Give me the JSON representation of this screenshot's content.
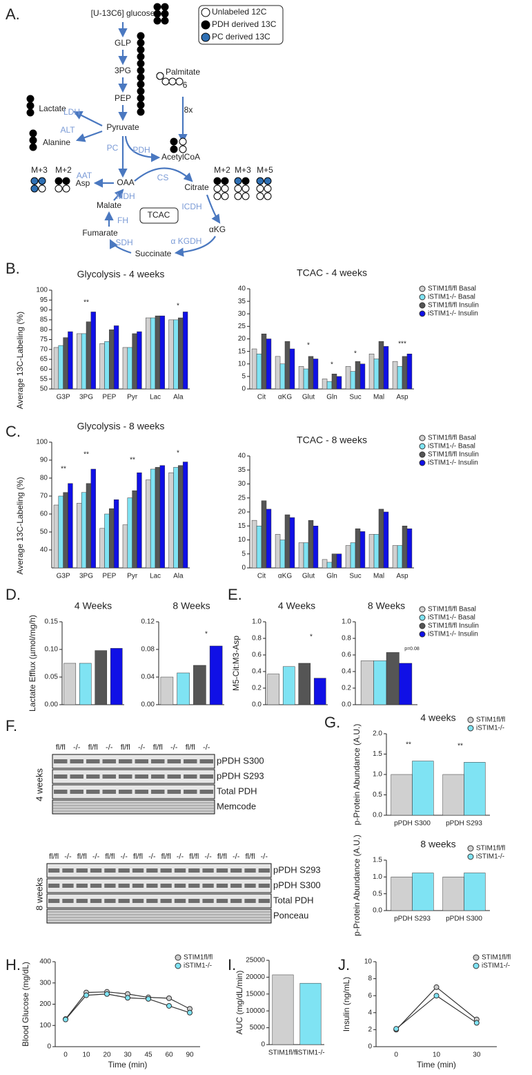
{
  "panel_labels": [
    "A.",
    "B.",
    "C.",
    "D.",
    "E.",
    "F.",
    "G.",
    "H.",
    "I.",
    "J."
  ],
  "diagram": {
    "labels": [
      "[U-13C6] glucose",
      "GLP",
      "3PG",
      "PEP",
      "Pyruvate",
      "Lactate",
      "Alanine",
      "LDH",
      "ALT",
      "PC",
      "PDH",
      "AcetylCoA",
      "Palmitate",
      "6",
      "8x",
      "M+3",
      "M+2",
      "AAT",
      "Asp",
      "OAA",
      "CS",
      "Citrate",
      "MDH",
      "Malate",
      "TCAC",
      "ICDH",
      "FH",
      "Fumarate",
      "SDH",
      "α KGDH",
      "αKG",
      "Succinate",
      "M+2",
      "M+3",
      "M+5"
    ],
    "legend": [
      "Unlabeled 12C",
      "PDH derived 13C",
      "PC derived 13C"
    ]
  },
  "blots": {
    "four_weeks": {
      "label": "4 weeks",
      "lanes": [
        "fl/fl",
        "-/-",
        "fl/fl",
        "-/-",
        "fl/fl",
        "-/-",
        "fl/fl",
        "-/-",
        "fl/fl",
        "-/-"
      ],
      "rows": [
        "pPDH S300",
        "pPDH S293",
        "Total PDH",
        "Memcode"
      ]
    },
    "eight_weeks": {
      "label": "8 weeks",
      "lanes": [
        "fl/fl",
        "-/-",
        "fl/fl",
        "-/-",
        "fl/fl",
        "-/-",
        "fl/fl",
        "-/-",
        "fl/fl",
        "-/-",
        "fl/fl",
        "-/-",
        "fl/fl",
        "-/-",
        "fl/fl",
        "-/-"
      ],
      "rows": [
        "pPDH S293",
        "pPDH S300",
        "Total PDH",
        "Ponceau"
      ]
    }
  },
  "chart_data": [
    {
      "type": "bar",
      "title": "Glycolysis - 4 weeks",
      "ylabel": "Average 13C-Labeling (%)",
      "categories": [
        "G3P",
        "3PG",
        "PEP",
        "Pyr",
        "Lac",
        "Ala"
      ],
      "series": [
        {
          "color": "#d0d0d0",
          "values": [
            71,
            78,
            73,
            71,
            86,
            85
          ]
        },
        {
          "color": "#7fe3f3",
          "values": [
            72,
            78,
            74,
            71,
            86,
            85
          ]
        },
        {
          "color": "#555555",
          "values": [
            76,
            84,
            80,
            78,
            87,
            86
          ]
        },
        {
          "color": "#1010e6",
          "values": [
            79,
            89,
            82,
            79,
            87,
            89
          ]
        }
      ],
      "ylim": [
        50,
        100
      ],
      "yticks": [
        50,
        55,
        60,
        65,
        70,
        75,
        80,
        85,
        90,
        95,
        100
      ],
      "annotations": [
        "**",
        "*"
      ]
    },
    {
      "type": "bar",
      "title": "TCAC - 4 weeks",
      "categories": [
        "Cit",
        "αKG",
        "Glut",
        "Gln",
        "Suc",
        "Mal",
        "Asp"
      ],
      "series": [
        {
          "name": "STIM1fl/fl Basal",
          "color": "#d0d0d0",
          "values": [
            16,
            13,
            9,
            4,
            9,
            14,
            11
          ]
        },
        {
          "name": "iSTIM1-/- Basal",
          "color": "#7fe3f3",
          "values": [
            14,
            10,
            8,
            3,
            7,
            12,
            9
          ]
        },
        {
          "name": "STIM1fl/fl Insulin",
          "color": "#555555",
          "values": [
            22,
            19,
            13,
            6,
            11,
            19,
            13
          ]
        },
        {
          "name": "iSTIM1-/- Insulin",
          "color": "#1010e6",
          "values": [
            20,
            16,
            12,
            5,
            10,
            17,
            14
          ]
        }
      ],
      "ylim": [
        0,
        40
      ],
      "yticks": [
        0,
        5,
        10,
        15,
        20,
        25,
        30,
        35,
        40
      ],
      "legend": "right",
      "annotations": [
        "*",
        "*",
        "*",
        "***"
      ]
    },
    {
      "type": "bar",
      "title": "Glycolysis - 8 weeks",
      "ylabel": "Average 13C-Labeling (%)",
      "categories": [
        "G3P",
        "3PG",
        "PEP",
        "Pyr",
        "Lac",
        "Ala"
      ],
      "series": [
        {
          "color": "#d0d0d0",
          "values": [
            65,
            66,
            52,
            54,
            79,
            83
          ]
        },
        {
          "color": "#7fe3f3",
          "values": [
            70,
            72,
            60,
            69,
            85,
            86
          ]
        },
        {
          "color": "#555555",
          "values": [
            72,
            77,
            63,
            73,
            86,
            87
          ]
        },
        {
          "color": "#1010e6",
          "values": [
            77,
            85,
            68,
            83,
            87,
            89
          ]
        }
      ],
      "ylim": [
        30,
        100
      ],
      "yticks": [
        40,
        50,
        60,
        70,
        80,
        90,
        100
      ],
      "annotations": [
        "**",
        "**",
        "**",
        "*"
      ]
    },
    {
      "type": "bar",
      "title": "TCAC - 8 weeks",
      "categories": [
        "Cit",
        "αKG",
        "Glut",
        "Gln",
        "Suc",
        "Mal",
        "Asp"
      ],
      "series": [
        {
          "name": "STIM1fl/fl Basal",
          "color": "#d0d0d0",
          "values": [
            17,
            12,
            9,
            3,
            8,
            12,
            8
          ]
        },
        {
          "name": "iSTIM1-/- Basal",
          "color": "#7fe3f3",
          "values": [
            15,
            10,
            9,
            2,
            9,
            12,
            8
          ]
        },
        {
          "name": "STIM1fl/fl Insulin",
          "color": "#555555",
          "values": [
            24,
            19,
            17,
            5,
            14,
            21,
            15
          ]
        },
        {
          "name": "iSTIM1-/- Insulin",
          "color": "#1010e6",
          "values": [
            21,
            18,
            15,
            5,
            13,
            20,
            14
          ]
        }
      ],
      "ylim": [
        0,
        40
      ],
      "yticks": [
        0,
        5,
        10,
        15,
        20,
        25,
        30,
        35,
        40
      ],
      "legend": "right"
    },
    {
      "type": "bar",
      "title": "4 Weeks",
      "ylabel": "Lactate Efflux (µmol/mg/h)",
      "values": [
        0.075,
        0.075,
        0.098,
        0.102
      ],
      "colors": [
        "#d0d0d0",
        "#7fe3f3",
        "#555555",
        "#1010e6"
      ],
      "ylim": [
        0,
        0.15
      ],
      "yticks": [
        {
          "value": 0,
          "label": "0.00"
        },
        0.05,
        {
          "value": 0.1,
          "label": "0.10"
        },
        0.15
      ]
    },
    {
      "type": "bar",
      "title": "8 Weeks",
      "values": [
        0.04,
        0.046,
        0.057,
        0.085
      ],
      "colors": [
        "#d0d0d0",
        "#7fe3f3",
        "#555555",
        "#1010e6"
      ],
      "ylim": [
        0,
        0.12
      ],
      "yticks": [
        {
          "value": 0,
          "label": "0.00"
        },
        0.04,
        0.08,
        0.12
      ],
      "annotations": [
        "*"
      ]
    },
    {
      "type": "bar",
      "title": "4 Weeks",
      "ylabel": "M5-Cit:M3-Asp",
      "values": [
        0.37,
        0.46,
        0.5,
        0.32
      ],
      "colors": [
        "#d0d0d0",
        "#7fe3f3",
        "#555555",
        "#1010e6"
      ],
      "ylim": [
        0,
        1
      ],
      "yticks": [
        {
          "value": 0,
          "label": "0.0"
        },
        0.2,
        0.4,
        0.6,
        0.8,
        {
          "value": 1,
          "label": "1.0"
        }
      ],
      "annotations": [
        "*"
      ]
    },
    {
      "type": "bar",
      "title": "8  Weeks",
      "categories": [
        null
      ],
      "series": [
        {
          "name": "STIM1fl/fl Basal",
          "color": "#d0d0d0",
          "values": [
            0.53
          ]
        },
        {
          "name": "iSTIM1-/- Basal",
          "color": "#7fe3f3",
          "values": [
            0.53
          ]
        },
        {
          "name": "STIM1fl/fl Insulin",
          "color": "#555555",
          "values": [
            0.63
          ]
        },
        {
          "name": "iSTIM1-/- Insulin",
          "color": "#1010e6",
          "values": [
            0.5
          ]
        }
      ],
      "ylim": [
        0,
        1
      ],
      "yticks": [
        {
          "value": 0,
          "label": "0.0"
        },
        0.2,
        0.4,
        0.6,
        0.8,
        {
          "value": 1,
          "label": "1.0"
        }
      ],
      "legend": "right",
      "annotations": [
        "p=0.08"
      ]
    },
    {
      "type": "bar",
      "title": "4 weeks",
      "ylabel": "p-Protein Abundance (A.U.)",
      "categories": [
        "pPDH S300",
        "pPDH S293"
      ],
      "series": [
        {
          "name": "STIM1fl/fl",
          "color": "#d0d0d0",
          "values": [
            1.0,
            1.0
          ]
        },
        {
          "name": "iSTIM1-/-",
          "color": "#7fe3f3",
          "values": [
            1.33,
            1.3
          ]
        }
      ],
      "ylim": [
        0,
        2
      ],
      "yticks": [
        {
          "value": 0,
          "label": "0.0"
        },
        0.5,
        {
          "value": 1,
          "label": "1.0"
        },
        1.5,
        {
          "value": 2,
          "label": "2.0"
        }
      ],
      "legend": "right",
      "annotations": [
        "**",
        "**"
      ]
    },
    {
      "type": "bar",
      "title": "8 weeks",
      "ylabel": "p-Protein Abundance (A.U.)",
      "categories": [
        "pPDH S293",
        "pPDH S300"
      ],
      "series": [
        {
          "name": "STIM1fl/fl",
          "color": "#d0d0d0",
          "values": [
            1.0,
            1.0
          ]
        },
        {
          "name": "iSTIM1-/-",
          "color": "#7fe3f3",
          "values": [
            1.12,
            1.12
          ]
        }
      ],
      "ylim": [
        0,
        1.5
      ],
      "yticks": [
        {
          "value": 0,
          "label": "0.0"
        },
        0.5,
        {
          "value": 1,
          "label": "1.0"
        },
        1.5
      ],
      "legend": "right"
    },
    {
      "type": "line",
      "xlabel": "Time (min)",
      "ylabel": "Blood Glucose (mg/dL)",
      "categories": [
        "0",
        "10",
        "20",
        "30",
        "45",
        "60",
        "90"
      ],
      "series": [
        {
          "name": "STIM1fl/fl",
          "color": "#cccccc",
          "values": [
            130,
            255,
            258,
            248,
            232,
            228,
            178
          ]
        },
        {
          "name": "iSTIM1-/-",
          "color": "#7fe3f3",
          "values": [
            128,
            242,
            248,
            230,
            225,
            192,
            160
          ]
        }
      ],
      "ylim": [
        0,
        400
      ],
      "yticks": [
        0,
        100,
        200,
        300,
        400
      ],
      "legend": "right"
    },
    {
      "type": "bar",
      "ylabel": "AUC (mg/dL/min)",
      "categories": [
        "STIM1fl/fl",
        "iSTIM1-/-"
      ],
      "values": [
        20700,
        18200
      ],
      "colors": [
        "#d0d0d0",
        "#7fe3f3"
      ],
      "ylim": [
        0,
        25000
      ],
      "yticks": [
        0,
        5000,
        10000,
        15000,
        20000,
        25000
      ]
    },
    {
      "type": "line",
      "xlabel": "Time (min)",
      "ylabel": "Insulin (ng/mL)",
      "categories": [
        "0",
        "10",
        "30"
      ],
      "series": [
        {
          "name": "STIM1fl/fl",
          "color": "#cccccc",
          "values": [
            2.0,
            7.0,
            3.2
          ]
        },
        {
          "name": "iSTIM1-/-",
          "color": "#7fe3f3",
          "values": [
            2.1,
            6.0,
            2.8
          ]
        }
      ],
      "ylim": [
        0,
        10
      ],
      "yticks": [
        0,
        2,
        4,
        6,
        8,
        10
      ],
      "legend": "right"
    }
  ]
}
